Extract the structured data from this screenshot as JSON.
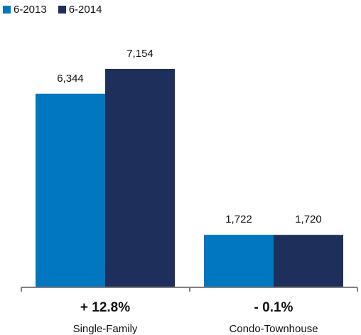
{
  "chart_data": {
    "type": "bar",
    "categories": [
      "Single-Family",
      "Condo-Townhouse"
    ],
    "series": [
      {
        "name": "6-2013",
        "values": [
          6344,
          1722
        ],
        "value_labels": [
          "6,344",
          "1,722"
        ],
        "color": "#0077c0"
      },
      {
        "name": "6-2014",
        "values": [
          7154,
          1720
        ],
        "value_labels": [
          "7,154",
          "1,720"
        ],
        "color": "#1e2f5c"
      }
    ],
    "changes": [
      "+ 12.8%",
      "- 0.1%"
    ],
    "title": "",
    "xlabel": "",
    "ylabel": "",
    "ylim": [
      0,
      7154
    ],
    "grid": false,
    "legend": "top-left"
  }
}
